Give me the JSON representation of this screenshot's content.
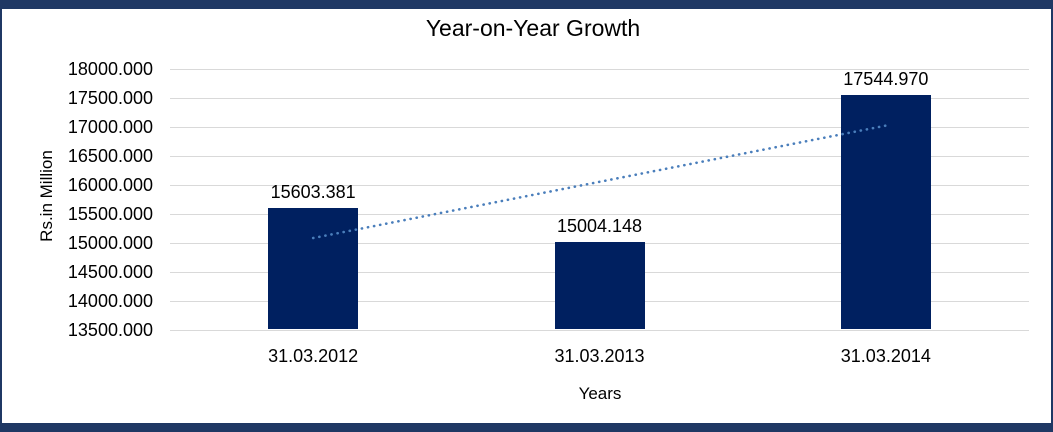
{
  "frame": {
    "border_color": "#1F3864"
  },
  "chart_data": {
    "type": "bar",
    "title": "Year-on-Year Growth",
    "xlabel": "Years",
    "ylabel": "Rs.in Million",
    "categories": [
      "31.03.2012",
      "31.03.2013",
      "31.03.2014"
    ],
    "values": [
      15603.381,
      15004.148,
      17544.97
    ],
    "data_labels": [
      "15603.381",
      "15004.148",
      "17544.970"
    ],
    "ylim": [
      13500,
      18000
    ],
    "ytick_step": 500,
    "yticks": [
      "18000.000",
      "17500.000",
      "17000.000",
      "16500.000",
      "16000.000",
      "15500.000",
      "15000.000",
      "14500.000",
      "14000.000",
      "13500.000"
    ],
    "grid": true,
    "legend": "none",
    "bar_color": "#002060",
    "gridline_color": "#D9D9D9",
    "text_color": "#000000",
    "trendline": {
      "type": "linear",
      "style": "dotted",
      "color": "#4A7EBB"
    }
  }
}
